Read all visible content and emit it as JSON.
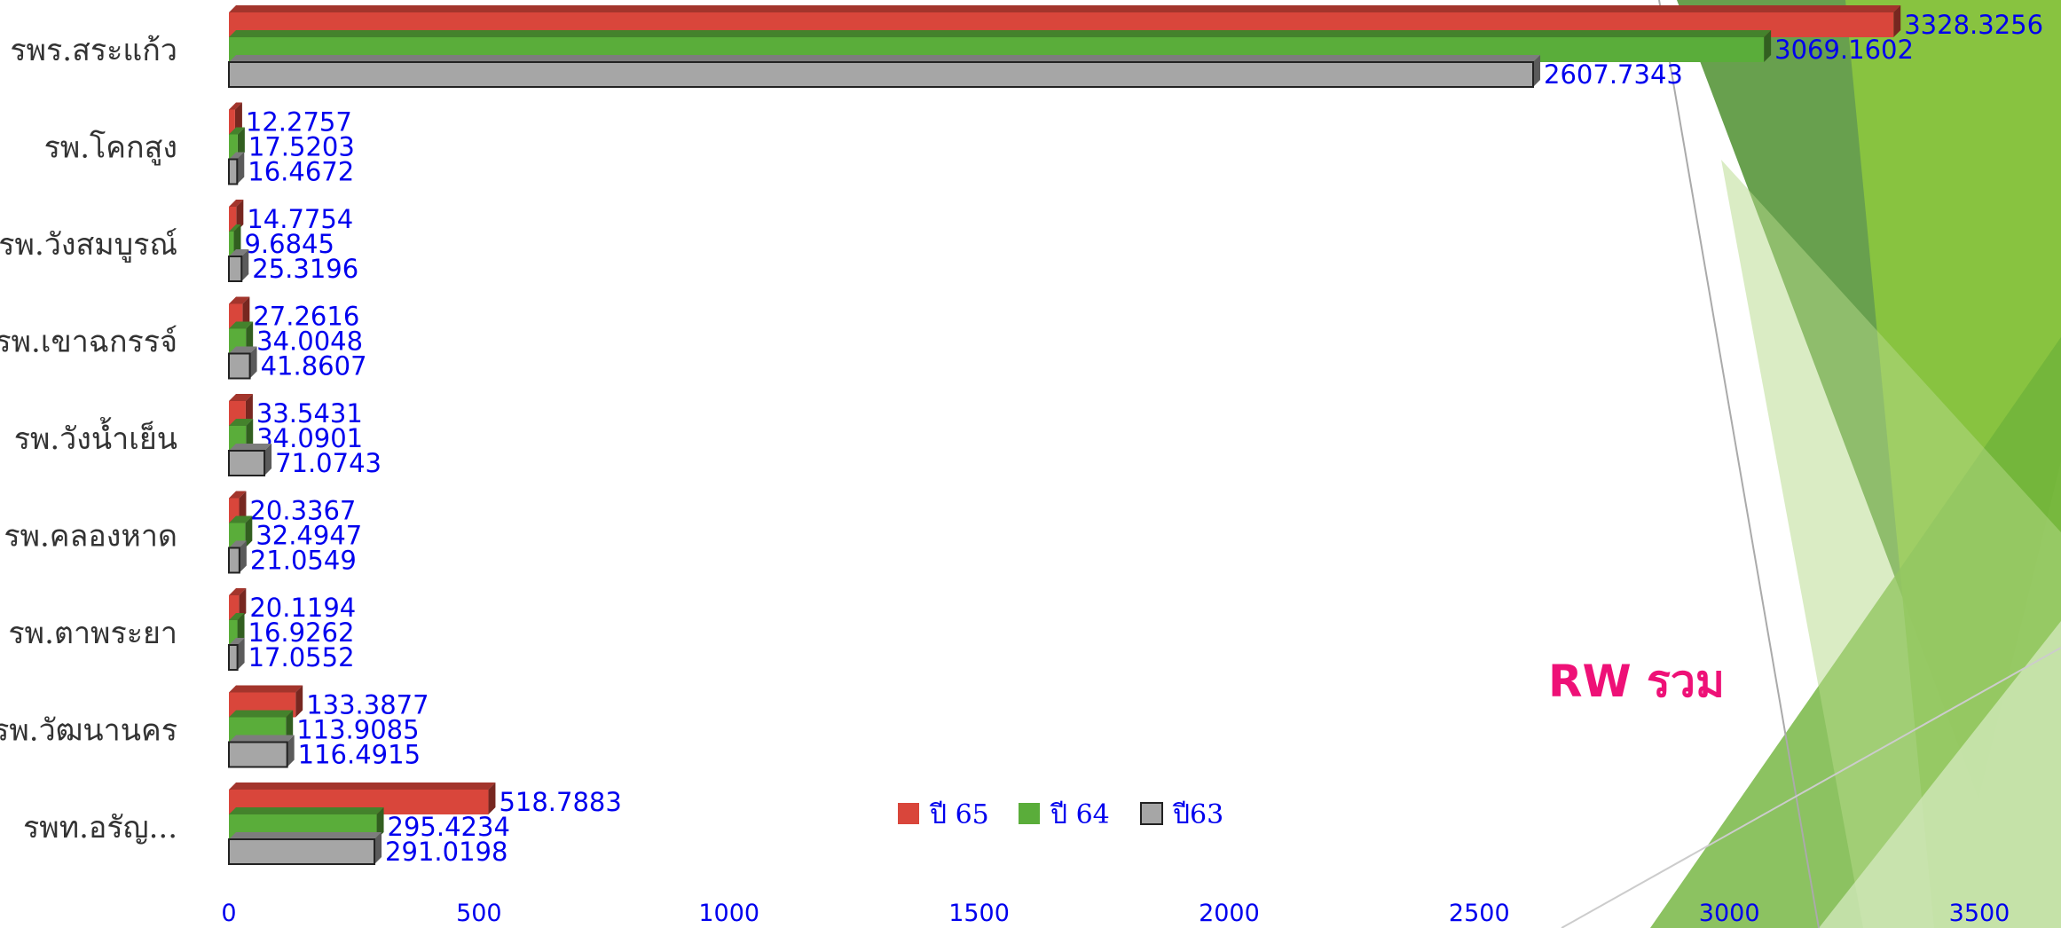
{
  "chart_data": {
    "type": "bar",
    "orientation": "horizontal",
    "title": "RW รวม",
    "categories": [
      "รพร.สระแก้ว",
      "รพ.โคกสูง",
      "รพ.วังสมบูรณ์",
      "รพ.เขาฉกรรจ์",
      "รพ.วังน้ำเย็น",
      "รพ.คลองหาด",
      "รพ.ตาพระยา",
      "รพ.วัฒนานคร",
      "รพท.อรัญ..."
    ],
    "series": [
      {
        "name": "ปี 65",
        "color": "#d9463b",
        "values": [
          3328.3256,
          12.2757,
          14.7754,
          27.2616,
          33.5431,
          20.3367,
          20.1194,
          133.3877,
          518.7883
        ]
      },
      {
        "name": "ปี 64",
        "color": "#5aad3a",
        "values": [
          3069.1602,
          17.5203,
          9.6845,
          34.0048,
          34.0901,
          32.4947,
          16.9262,
          113.9085,
          295.4234
        ]
      },
      {
        "name": "ปี63",
        "color": "#a6a6a6",
        "values": [
          2607.7343,
          16.4672,
          25.3196,
          41.8607,
          71.0743,
          21.0549,
          17.0552,
          116.4915,
          291.0198
        ]
      }
    ],
    "xlim": [
      0,
      3500
    ],
    "xticks": [
      0,
      500,
      1000,
      1500,
      2000,
      2500,
      3000,
      3500
    ],
    "legend": "center"
  }
}
